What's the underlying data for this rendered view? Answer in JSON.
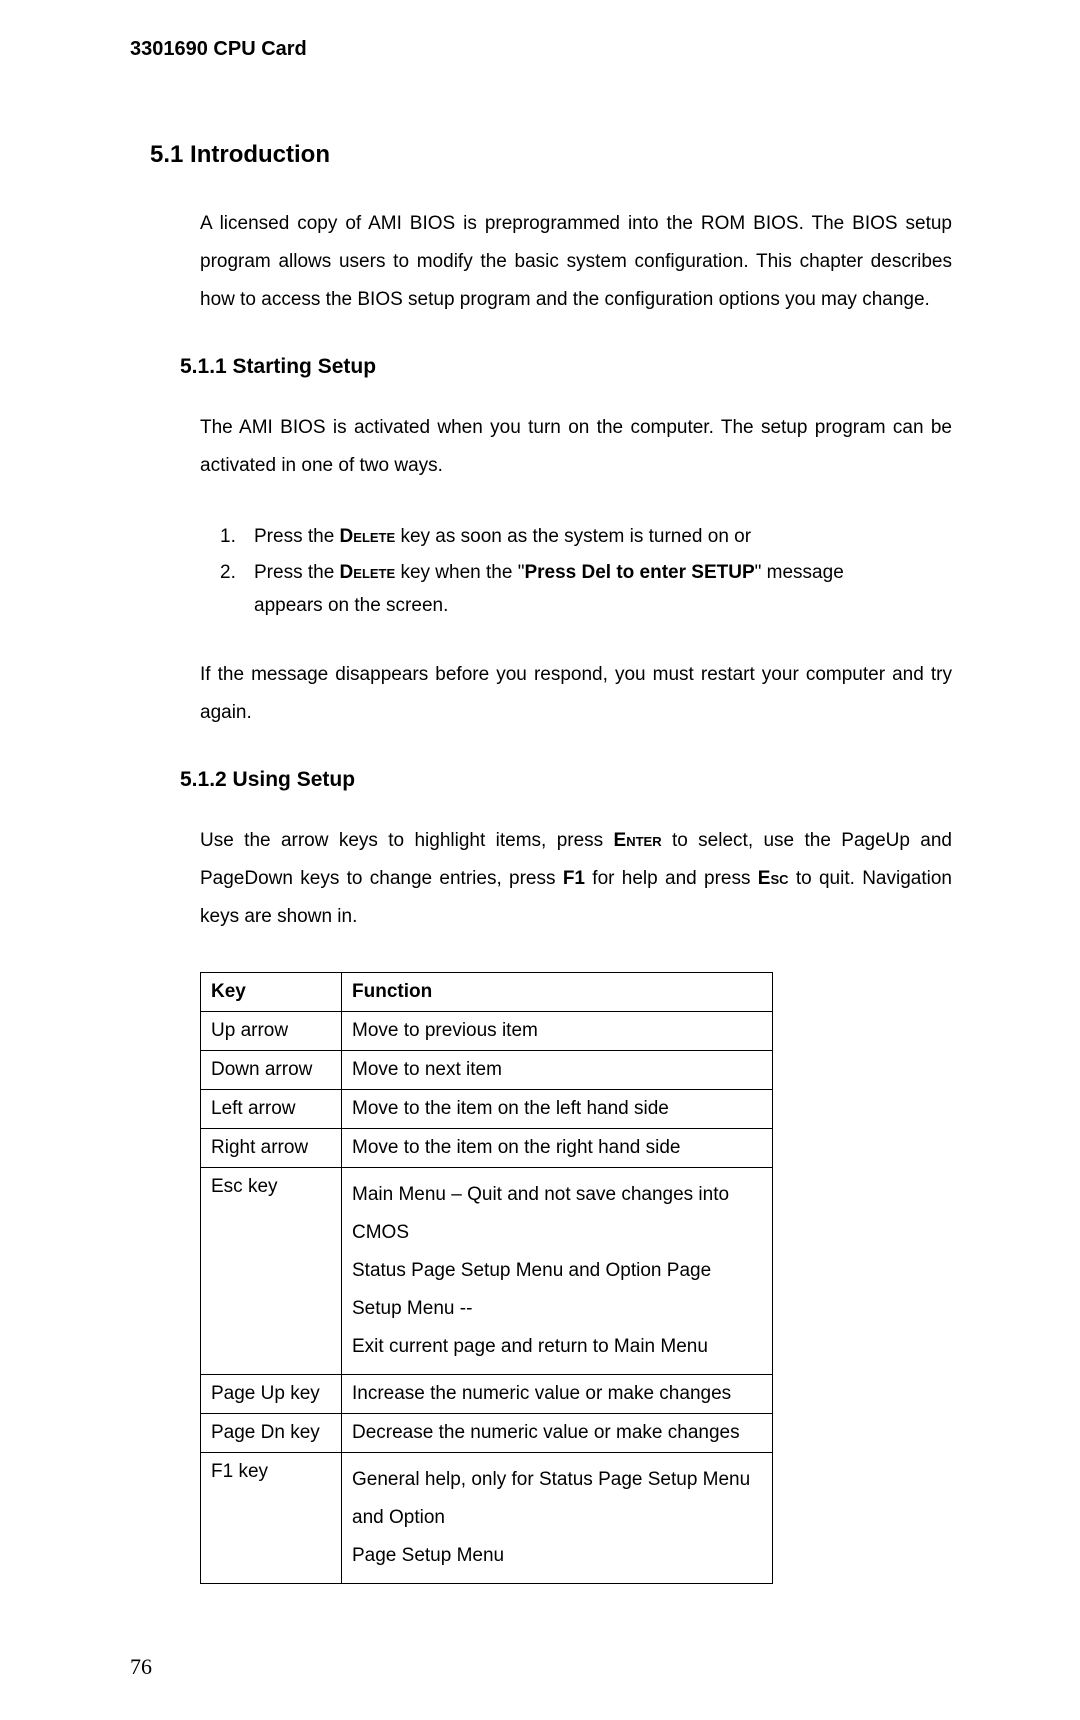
{
  "header": "3301690 CPU Card",
  "h1": "5.1 Introduction",
  "intro_para": "A licensed copy of AMI BIOS is preprogrammed into the ROM BIOS. The BIOS setup program allows users to modify the basic system configuration.  This chapter describes how to access the BIOS setup program and the configuration options you may change.",
  "h2_1": "5.1.1  Starting Setup",
  "p_511": "The AMI BIOS is activated when you turn on the computer. The setup program can be activated in one of two ways.",
  "list1": {
    "n1": "1.",
    "t1a": "Press the ",
    "t1_key": "Delete",
    "t1b": " key as soon as the system is turned on or",
    "n2": "2.",
    "t2a": "Press the ",
    "t2_key": "Delete",
    "t2b": " key when the \"",
    "t2_bold": "Press Del to enter SETUP",
    "t2c": "\" message appears on the screen."
  },
  "p_511b": "If the message disappears before you respond, you must restart your computer and try again.",
  "h2_2": "5.1.2  Using Setup",
  "p_512a": "Use the arrow keys to highlight items, press ",
  "p_512_enter": "Enter",
  "p_512b": " to select, use the PageUp and PageDown keys to change entries, press ",
  "p_512_f1": "F1",
  "p_512c": " for help and press ",
  "p_512_esc": "Esc",
  "p_512d": " to quit. Navigation keys are shown in.",
  "table": {
    "head_key": "Key",
    "head_func": "Function",
    "rows": [
      {
        "k": "Up arrow",
        "f": "Move to previous item"
      },
      {
        "k": "Down arrow",
        "f": "Move to next item"
      },
      {
        "k": "Left arrow",
        "f": "Move to the item on the left hand side"
      },
      {
        "k": "Right arrow",
        "f": "Move to the item on the right hand side"
      },
      {
        "k": "Esc key",
        "f1": "Main Menu – Quit and not save changes into CMOS",
        "f2": "Status Page Setup Menu and Option Page Setup Menu --",
        "f3": "Exit current page and return to Main Menu"
      },
      {
        "k": "Page Up key",
        "f": "Increase the numeric value or make changes"
      },
      {
        "k": "Page Dn key",
        "f": "Decrease the numeric value or make changes"
      },
      {
        "k": "F1 key",
        "f1": "General help, only for Status Page Setup Menu and Option",
        "f2": "Page Setup Menu"
      }
    ]
  },
  "page_number": "76"
}
